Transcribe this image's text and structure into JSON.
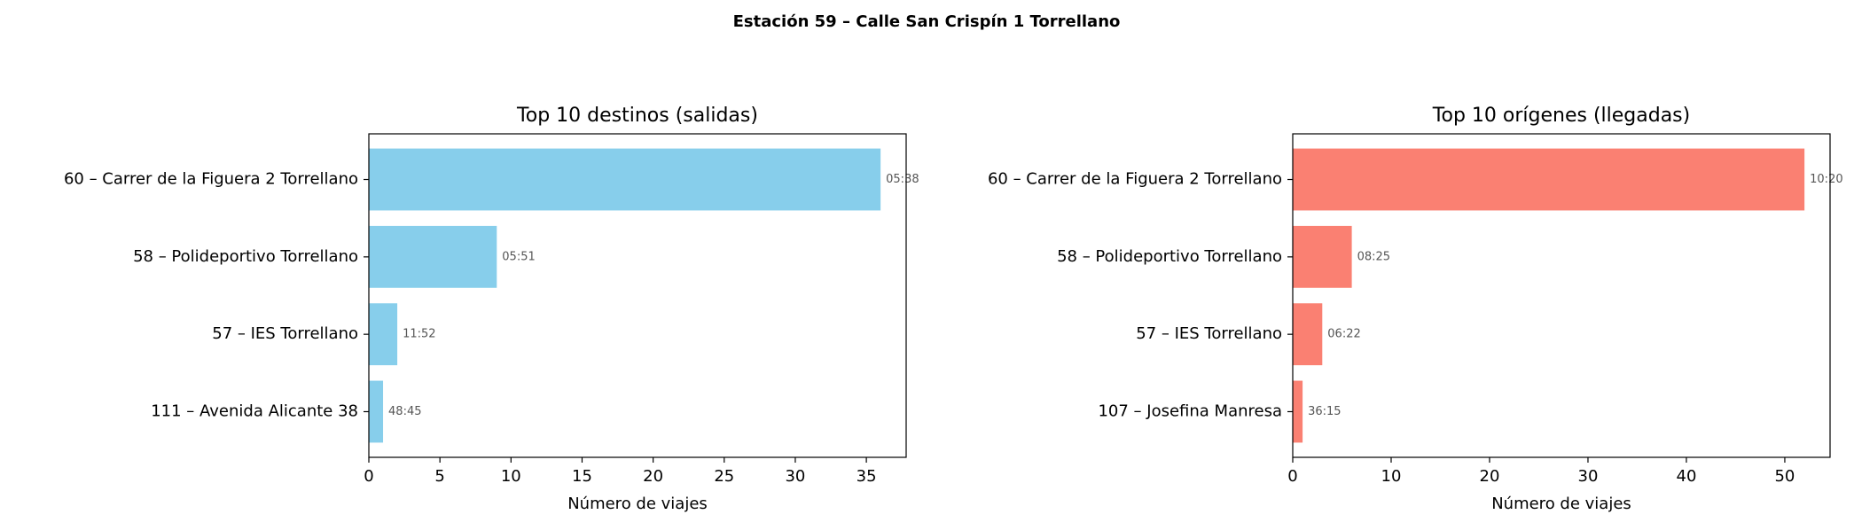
{
  "title": "Estación 59 – Calle San Crispín 1 Torrellano",
  "chart_data": [
    {
      "type": "bar",
      "orientation": "horizontal",
      "title": "Top 10 destinos (salidas)",
      "x_label": "Número de viajes",
      "categories": [
        "60 – Carrer de la Figuera 2 Torrellano",
        "58 – Polideportivo Torrellano",
        "57 – IES Torrellano",
        "111 – Avenida Alicante 38"
      ],
      "values": [
        36,
        9,
        2,
        1
      ],
      "bar_labels": [
        "05:38",
        "05:51",
        "11:52",
        "48:45"
      ],
      "color": "#87ceeb",
      "xlim": [
        0,
        37.8
      ],
      "xticks": [
        0,
        5,
        10,
        15,
        20,
        25,
        30,
        35
      ]
    },
    {
      "type": "bar",
      "orientation": "horizontal",
      "title": "Top 10 orígenes (llegadas)",
      "x_label": "Número de viajes",
      "categories": [
        "60 – Carrer de la Figuera 2 Torrellano",
        "58 – Polideportivo Torrellano",
        "57 – IES Torrellano",
        "107 – Josefina Manresa"
      ],
      "values": [
        52,
        6,
        3,
        1
      ],
      "bar_labels": [
        "10:20",
        "08:25",
        "06:22",
        "36:15"
      ],
      "color": "#fa8072",
      "xlim": [
        0,
        54.6
      ],
      "xticks": [
        0,
        10,
        20,
        30,
        40,
        50
      ]
    }
  ]
}
